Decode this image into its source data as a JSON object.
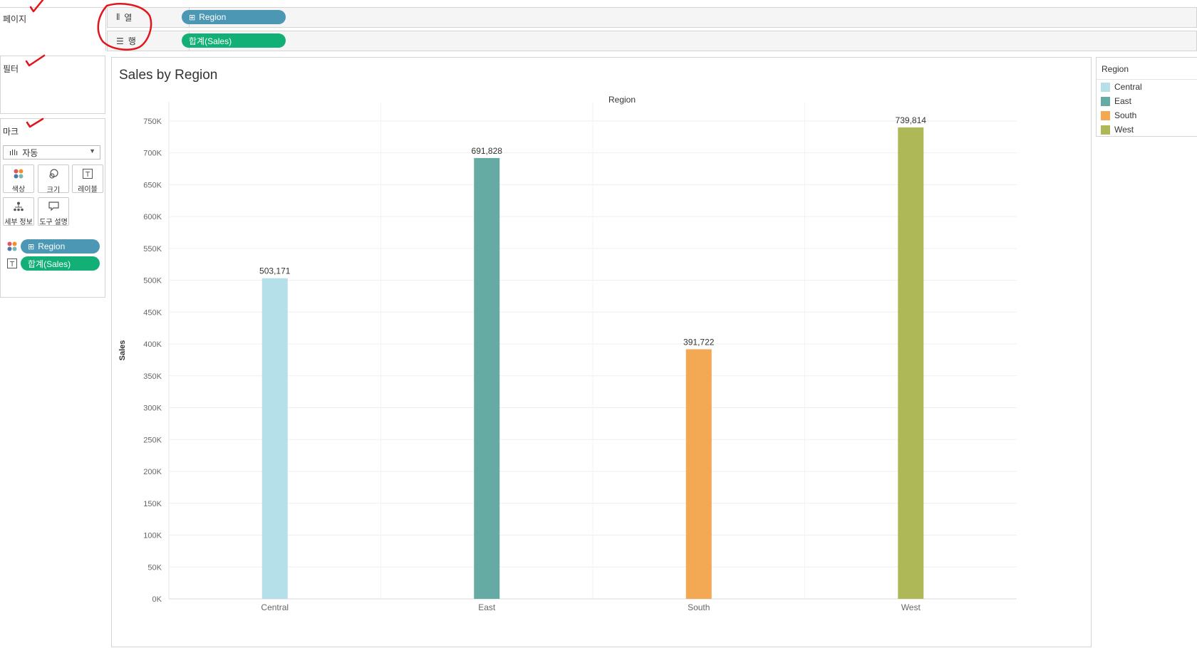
{
  "shelves": {
    "pages_label": "페이지",
    "columns_label": "열",
    "rows_label": "행",
    "columns_pill": "Region",
    "rows_pill": "합계(Sales)"
  },
  "filters": {
    "title": "필터"
  },
  "marks": {
    "title": "마크",
    "type": "자동",
    "buttons": [
      {
        "label": "색상",
        "icon": "color-dots-icon"
      },
      {
        "label": "크기",
        "icon": "size-icon"
      },
      {
        "label": "레이블",
        "icon": "label-icon"
      },
      {
        "label": "세부 정보",
        "icon": "detail-icon"
      },
      {
        "label": "도구 설명",
        "icon": "tooltip-icon"
      }
    ],
    "fields": [
      {
        "icon": "color-dots-icon",
        "label": "Region"
      },
      {
        "icon": "label-icon",
        "label": "합계(Sales)"
      }
    ]
  },
  "chart_data": {
    "type": "bar",
    "title": "Sales by Region",
    "column_header": "Region",
    "ylabel": "Sales",
    "xlabel": "",
    "categories": [
      "Central",
      "East",
      "South",
      "West"
    ],
    "values": [
      503171,
      691828,
      391722,
      739814
    ],
    "value_labels": [
      "503,171",
      "691,828",
      "391,722",
      "739,814"
    ],
    "colors": [
      "#b5e0ea",
      "#65aba4",
      "#f3a853",
      "#afb856"
    ],
    "ylim": [
      0,
      780000
    ],
    "yticks": [
      0,
      50000,
      100000,
      150000,
      200000,
      250000,
      300000,
      350000,
      400000,
      450000,
      500000,
      550000,
      600000,
      650000,
      700000,
      750000
    ],
    "ytick_labels": [
      "0K",
      "50K",
      "100K",
      "150K",
      "200K",
      "250K",
      "300K",
      "350K",
      "400K",
      "450K",
      "500K",
      "550K",
      "600K",
      "650K",
      "700K",
      "750K"
    ],
    "grid": true,
    "legend_placement": "right"
  },
  "legend": {
    "title": "Region",
    "items": [
      {
        "label": "Central",
        "color": "#b5e0ea"
      },
      {
        "label": "East",
        "color": "#65aba4"
      },
      {
        "label": "South",
        "color": "#f3a853"
      },
      {
        "label": "West",
        "color": "#afb856"
      }
    ]
  },
  "colors": {
    "pill_dimension": "#4b97b4",
    "pill_measure": "#12b076",
    "annotation": "#e3141b"
  }
}
